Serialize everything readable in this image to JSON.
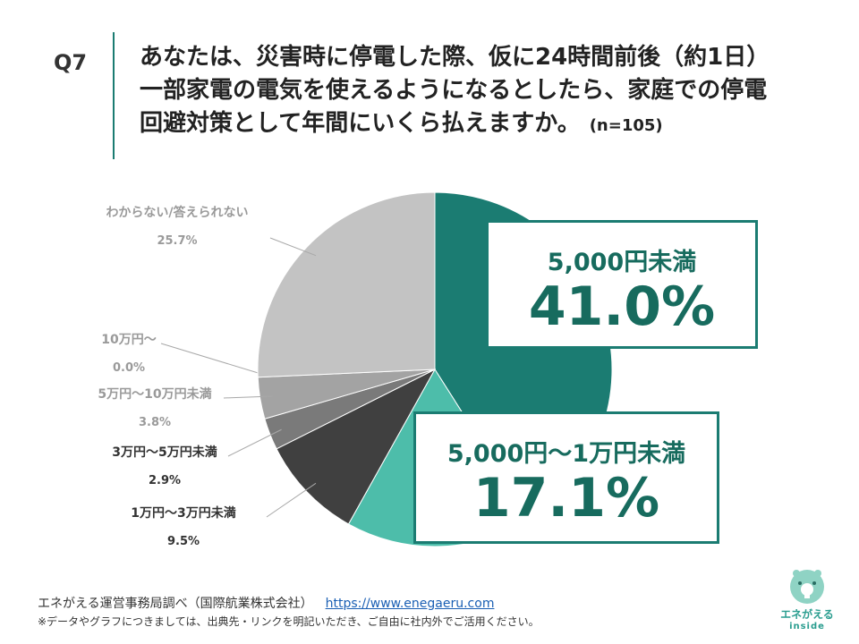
{
  "header": {
    "question_number": "Q7",
    "question_lines": [
      "あなたは、災害時に停電した際、仮に24時間前後（約1日）",
      "一部家電の電気を使えるようになるとしたら、家庭での停電",
      "回避対策として年間にいくら払えますか。"
    ],
    "sample_size": "(n=105)"
  },
  "chart_data": {
    "type": "pie",
    "start": "top",
    "direction": "clockwise",
    "slices": [
      {
        "label": "5,000円未満",
        "value": 41.0,
        "value_text": "41.0%",
        "color": "#1b7c72",
        "label_style": "callout"
      },
      {
        "label": "5,000円〜1万円未満",
        "value": 17.1,
        "value_text": "17.1%",
        "color": "#4dbdaa",
        "label_style": "callout"
      },
      {
        "label": "1万円〜3万円未満",
        "value": 9.5,
        "value_text": "9.5%",
        "color": "#404040",
        "label_style": "side"
      },
      {
        "label": "3万円〜5万円未満",
        "value": 2.9,
        "value_text": "2.9%",
        "color": "#7a7a7a",
        "label_style": "side"
      },
      {
        "label": "5万円〜10万円未満",
        "value": 3.8,
        "value_text": "3.8%",
        "color": "#a3a3a3",
        "label_style": "side"
      },
      {
        "label": "10万円〜",
        "value": 0.0,
        "value_text": "0.0%",
        "color": "#bdbdbd",
        "label_style": "side"
      },
      {
        "label": "わからない/答えられない",
        "value": 25.7,
        "value_text": "25.7%",
        "color": "#c3c3c3",
        "label_style": "side"
      }
    ]
  },
  "footer": {
    "source": "エネがえる運営事務局調べ（国際航業株式会社）",
    "url": "https://www.enegaeru.com",
    "note": "※データやグラフにつきましては、出典先・リンクを明記いただき、ご自由に社内外でご活用ください。"
  },
  "logo": {
    "name": "エネがえる",
    "sub": "inside",
    "icon": "lightbulb-mascot-icon"
  },
  "colors": {
    "accent": "#1b7c72",
    "accent_light": "#4dbdaa",
    "label_gray": "#9a9a9a",
    "label_dark": "#333333"
  }
}
